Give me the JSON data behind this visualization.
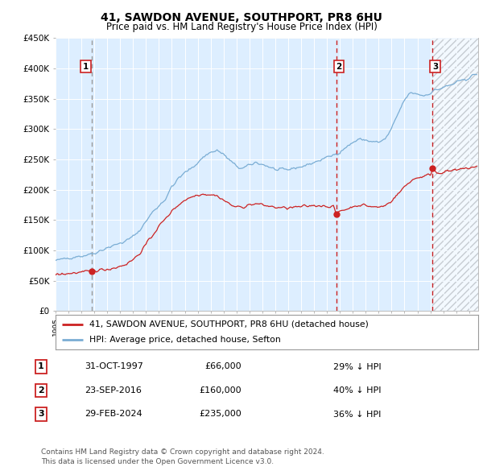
{
  "title": "41, SAWDON AVENUE, SOUTHPORT, PR8 6HU",
  "subtitle": "Price paid vs. HM Land Registry's House Price Index (HPI)",
  "ylabel_ticks": [
    "£0",
    "£50K",
    "£100K",
    "£150K",
    "£200K",
    "£250K",
    "£300K",
    "£350K",
    "£400K",
    "£450K"
  ],
  "ytick_values": [
    0,
    50000,
    100000,
    150000,
    200000,
    250000,
    300000,
    350000,
    400000,
    450000
  ],
  "xlim_start": 1995.3,
  "xlim_end": 2027.7,
  "ylim": [
    0,
    450000
  ],
  "sale_dates": [
    1997.833,
    2016.722,
    2024.167
  ],
  "sale_prices": [
    66000,
    160000,
    235000
  ],
  "sale_labels": [
    "1",
    "2",
    "3"
  ],
  "legend_line1": "41, SAWDON AVENUE, SOUTHPORT, PR8 6HU (detached house)",
  "legend_line2": "HPI: Average price, detached house, Sefton",
  "table_data": [
    [
      "1",
      "31-OCT-1997",
      "£66,000",
      "29% ↓ HPI"
    ],
    [
      "2",
      "23-SEP-2016",
      "£160,000",
      "40% ↓ HPI"
    ],
    [
      "3",
      "29-FEB-2024",
      "£235,000",
      "36% ↓ HPI"
    ]
  ],
  "footnote": "Contains HM Land Registry data © Crown copyright and database right 2024.\nThis data is licensed under the Open Government Licence v3.0.",
  "hpi_color": "#7aadd4",
  "price_color": "#cc2222",
  "bg_plot": "#ddeeff",
  "future_start": 2024.167
}
